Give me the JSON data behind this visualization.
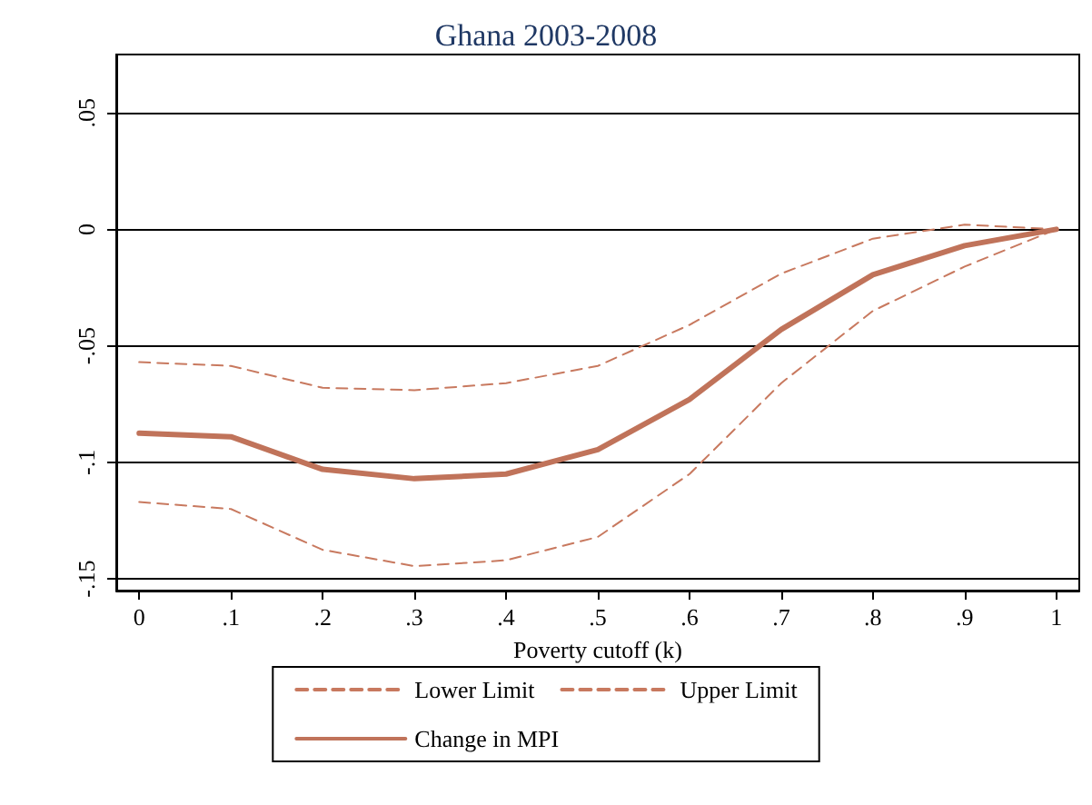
{
  "chart_data": {
    "type": "line",
    "title": "Ghana 2003-2008",
    "xlabel": "Poverty cutoff (k)",
    "x": [
      0,
      0.1,
      0.2,
      0.3,
      0.4,
      0.5,
      0.6,
      0.7,
      0.8,
      0.9,
      1
    ],
    "series": [
      {
        "name": "Lower Limit",
        "color": "#c8795f",
        "line_style": "dashed",
        "values": [
          -0.117,
          -0.12,
          -0.1375,
          -0.1445,
          -0.142,
          -0.132,
          -0.105,
          -0.066,
          -0.035,
          -0.016,
          0
        ]
      },
      {
        "name": "Upper Limit",
        "color": "#c8795f",
        "line_style": "dashed",
        "values": [
          -0.057,
          -0.0586,
          -0.068,
          -0.069,
          -0.066,
          -0.0586,
          -0.041,
          -0.019,
          -0.004,
          0.002,
          0
        ]
      },
      {
        "name": "Change in MPI",
        "color": "#c0735a",
        "line_style": "solid",
        "values": [
          -0.0875,
          -0.089,
          -0.103,
          -0.107,
          -0.105,
          -0.0945,
          -0.073,
          -0.043,
          -0.0195,
          -0.007,
          0
        ]
      }
    ],
    "xlim": [
      -0.025,
      1.025
    ],
    "xticks": [
      0,
      {
        "value": 0.1,
        "label": ".1"
      },
      {
        "value": 0.2,
        "label": ".2"
      },
      {
        "value": 0.3,
        "label": ".3"
      },
      {
        "value": 0.4,
        "label": ".4"
      },
      {
        "value": 0.5,
        "label": ".5"
      },
      {
        "value": 0.6,
        "label": ".6"
      },
      {
        "value": 0.7,
        "label": ".7"
      },
      {
        "value": 0.8,
        "label": ".8"
      },
      {
        "value": 0.9,
        "label": ".9"
      },
      1
    ],
    "ylim": [
      -0.155,
      0.075
    ],
    "yticks": [
      {
        "value": -0.15,
        "label": "-.15"
      },
      {
        "value": -0.1,
        "label": "-.1"
      },
      {
        "value": -0.05,
        "label": "-.05"
      },
      0,
      {
        "value": 0.05,
        "label": ".05"
      }
    ],
    "grid": "y",
    "legend": "bottom",
    "marker": "none"
  }
}
